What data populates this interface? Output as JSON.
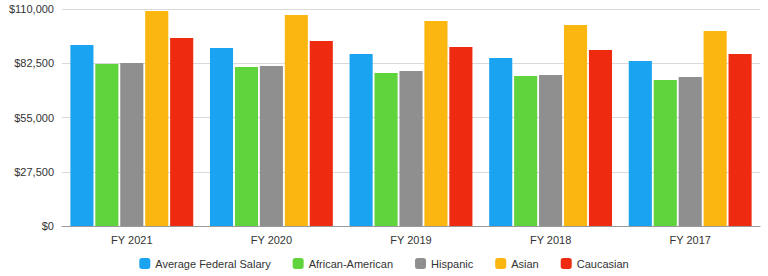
{
  "chart_data": {
    "type": "bar",
    "categories": [
      "FY 2021",
      "FY 2020",
      "FY 2019",
      "FY 2018",
      "FY 2017"
    ],
    "series": [
      {
        "name": "Average Federal Salary",
        "color": "#1aa3f0",
        "values": [
          91800,
          90200,
          87200,
          85200,
          83700
        ]
      },
      {
        "name": "African-American",
        "color": "#5fd43d",
        "values": [
          82100,
          80600,
          77600,
          76000,
          74000
        ]
      },
      {
        "name": "Hispanic",
        "color": "#8f8f8f",
        "values": [
          82600,
          81100,
          78600,
          76600,
          75500
        ]
      },
      {
        "name": "Asian",
        "color": "#fbb610",
        "values": [
          109000,
          107000,
          103900,
          101900,
          98900
        ]
      },
      {
        "name": "Caucasian",
        "color": "#ee2a10",
        "values": [
          95300,
          93800,
          90800,
          89200,
          87200
        ]
      }
    ],
    "ylim": [
      0,
      110000
    ],
    "yticks": [
      {
        "value": 0,
        "label": "$0"
      },
      {
        "value": 27500,
        "label": "$27,500"
      },
      {
        "value": 55000,
        "label": "$55,000"
      },
      {
        "value": 82500,
        "label": "$82,500"
      },
      {
        "value": 110000,
        "label": "$110,000"
      }
    ],
    "grid": true,
    "legend": "bottom"
  }
}
